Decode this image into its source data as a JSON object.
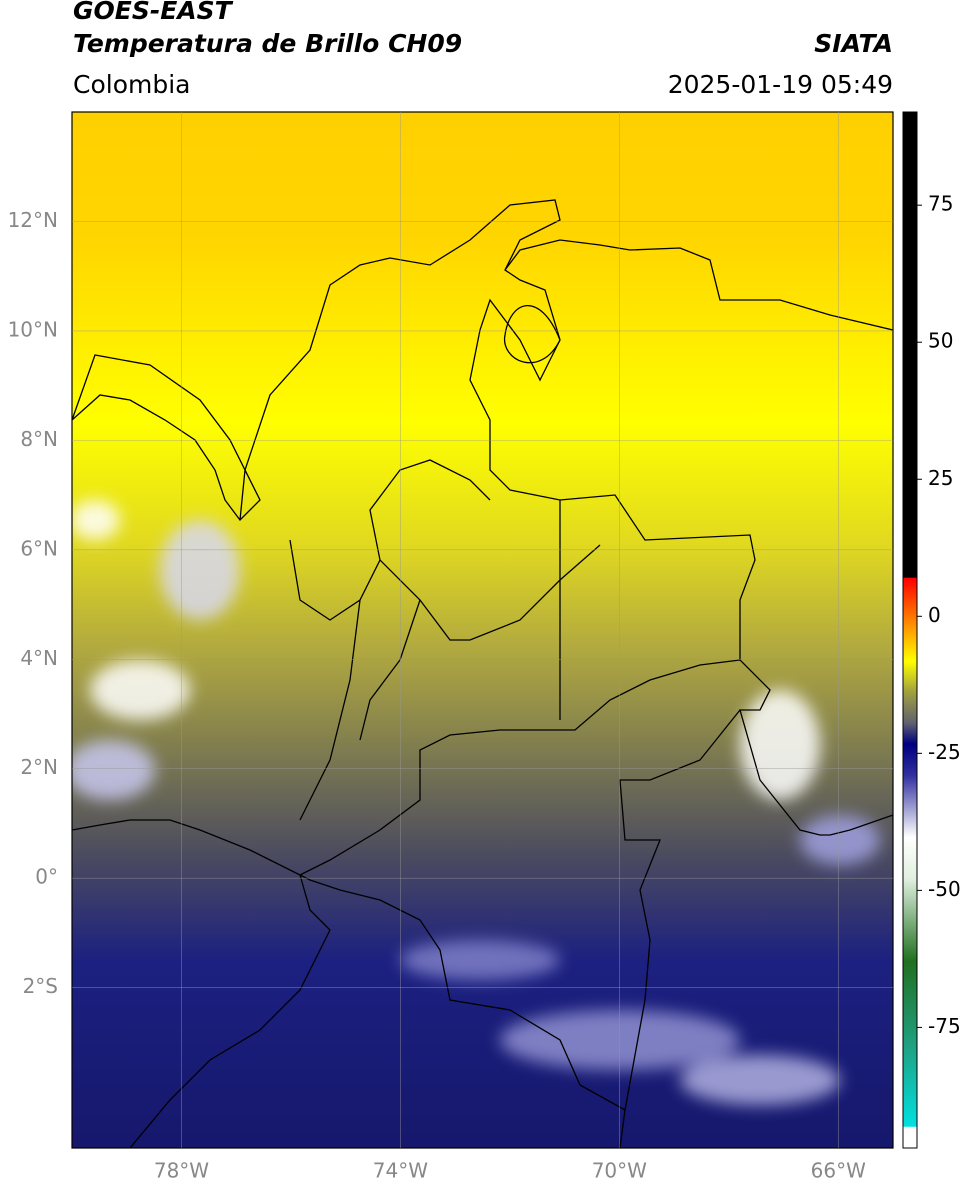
{
  "header": {
    "left_title": [
      "GOES-EAST",
      "Temperatura de Brillo CH09"
    ],
    "right_title": "SIATA",
    "region": "Colombia",
    "datetime": "2025-01-19 05:49"
  },
  "map": {
    "xlim": [
      -80,
      -65
    ],
    "ylim": [
      -4.93,
      14
    ],
    "xticks": [
      {
        "value": -78,
        "label": "78°W"
      },
      {
        "value": -74,
        "label": "74°W"
      },
      {
        "value": -70,
        "label": "70°W"
      },
      {
        "value": -66,
        "label": "66°W"
      }
    ],
    "yticks": [
      {
        "value": 12,
        "label": "12°N"
      },
      {
        "value": 10,
        "label": "10°N"
      },
      {
        "value": 8,
        "label": "8°N"
      },
      {
        "value": 6,
        "label": "6°N"
      },
      {
        "value": 4,
        "label": "4°N"
      },
      {
        "value": 2,
        "label": "2°N"
      },
      {
        "value": 0,
        "label": "0°"
      },
      {
        "value": -2,
        "label": "2°S"
      }
    ],
    "grid": true
  },
  "colorbar": {
    "lim": [
      -97,
      92
    ],
    "ticks": [
      75,
      50,
      25,
      0,
      -25,
      -50,
      -75
    ]
  }
}
